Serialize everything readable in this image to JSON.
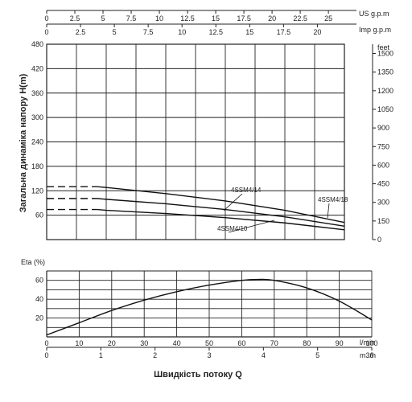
{
  "chart_data": [
    {
      "type": "line",
      "y_label": "Загальна динаміка напору H(m)",
      "y_ticks": [
        0,
        60,
        120,
        180,
        240,
        300,
        360,
        420,
        480
      ],
      "y_lim": [
        0,
        480
      ],
      "y2_unit": "feet",
      "y2_ticks": [
        0,
        150,
        300,
        450,
        600,
        750,
        900,
        1050,
        1200,
        1350,
        1500
      ],
      "top_axis_us": {
        "unit": "US g.p.m",
        "ticks": [
          0,
          2.5,
          5,
          7.5,
          10,
          12.5,
          15,
          17.5,
          20,
          22.5,
          25
        ]
      },
      "top_axis_imp": {
        "unit": "Imp g.p.m",
        "ticks": [
          0,
          2.5,
          5,
          7.5,
          10,
          12.5,
          15,
          17.5,
          20
        ]
      },
      "x_ticks": [
        0,
        10,
        20,
        30,
        40,
        50,
        60,
        70,
        80,
        90,
        100
      ],
      "x_lim": [
        0,
        100
      ],
      "grid": true,
      "series": [
        {
          "name": "4SSM4/18",
          "x": [
            0,
            17,
            20,
            40,
            60,
            80,
            100
          ],
          "y": [
            130,
            130,
            128,
            113,
            95,
            72,
            42
          ]
        },
        {
          "name": "4SSM4/14",
          "x": [
            0,
            17,
            20,
            40,
            60,
            80,
            100
          ],
          "y": [
            101,
            101,
            99,
            88,
            74,
            56,
            33
          ]
        },
        {
          "name": "4SSM4/10",
          "x": [
            0,
            17,
            20,
            40,
            60,
            80,
            100
          ],
          "y": [
            74,
            74,
            72,
            64,
            54,
            41,
            24
          ]
        }
      ],
      "dashed_until_x": 17
    },
    {
      "type": "line",
      "y_label": "Eta (%)",
      "y_ticks": [
        0,
        20,
        40,
        60
      ],
      "y_lim": [
        0,
        70
      ],
      "x_label": "Швидкість потоку Q",
      "x_unit": "l/min",
      "x_ticks": [
        0,
        10,
        20,
        30,
        40,
        50,
        60,
        70,
        80,
        90,
        100
      ],
      "x_lim": [
        0,
        100
      ],
      "x2_unit": "m3/h",
      "x2_ticks": [
        0,
        1,
        2,
        3,
        4,
        5,
        6
      ],
      "grid": true,
      "series": [
        {
          "x": [
            0,
            10,
            20,
            30,
            40,
            50,
            60,
            65,
            70,
            80,
            90,
            100
          ],
          "y": [
            2,
            15,
            28,
            39,
            48,
            55,
            60,
            61,
            60,
            52,
            38,
            18
          ]
        }
      ]
    }
  ]
}
